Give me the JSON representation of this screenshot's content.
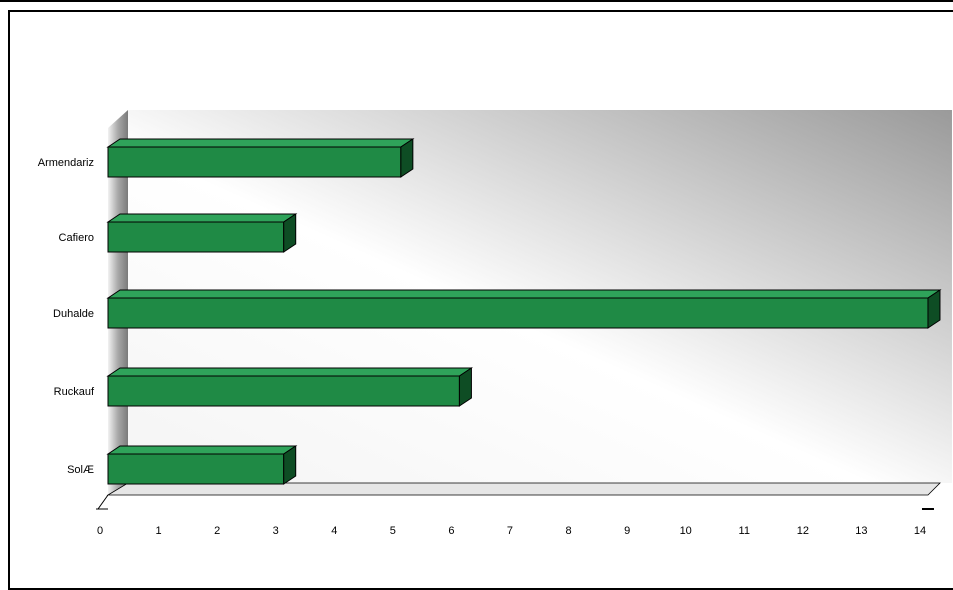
{
  "chart_data": {
    "type": "bar",
    "orientation": "horizontal",
    "style": "3d",
    "title": "",
    "xlabel": "",
    "ylabel": "",
    "categories": [
      "Armendariz",
      "Cafiero",
      "Duhalde",
      "Ruckauf",
      "SolÆ"
    ],
    "values": [
      5,
      3,
      14,
      6,
      3
    ],
    "xlim": [
      0,
      14
    ],
    "x_ticks": [
      "0",
      "1",
      "2",
      "3",
      "4",
      "5",
      "6",
      "7",
      "8",
      "9",
      "10",
      "11",
      "12",
      "13",
      "14"
    ],
    "grid": false,
    "legend": "none",
    "colors": {
      "bar_front": "#1f8a45",
      "bar_top": "#2fa35a",
      "bar_side": "#0e4d24",
      "bar_outline": "#000000",
      "wall_dark": "#9a9a9a",
      "wall_light": "#ffffff",
      "floor": "#e6e6e6"
    }
  }
}
